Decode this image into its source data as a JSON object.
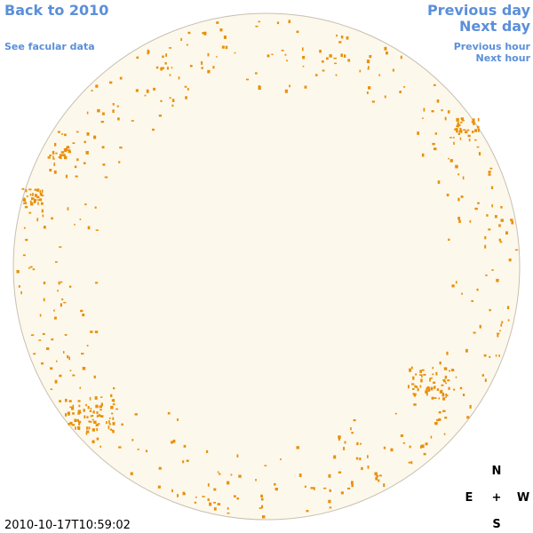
{
  "nav": {
    "back": "Back to 2010",
    "facular": "See facular data",
    "previous_day": "Previous day",
    "next_day": "Next day",
    "previous_hour": "Previous hour",
    "next_hour": "Next hour"
  },
  "timestamp": "2010-10-17T10:59:02",
  "compass": {
    "north": "N",
    "east": "E",
    "center": "+",
    "west": "W",
    "south": "S"
  }
}
